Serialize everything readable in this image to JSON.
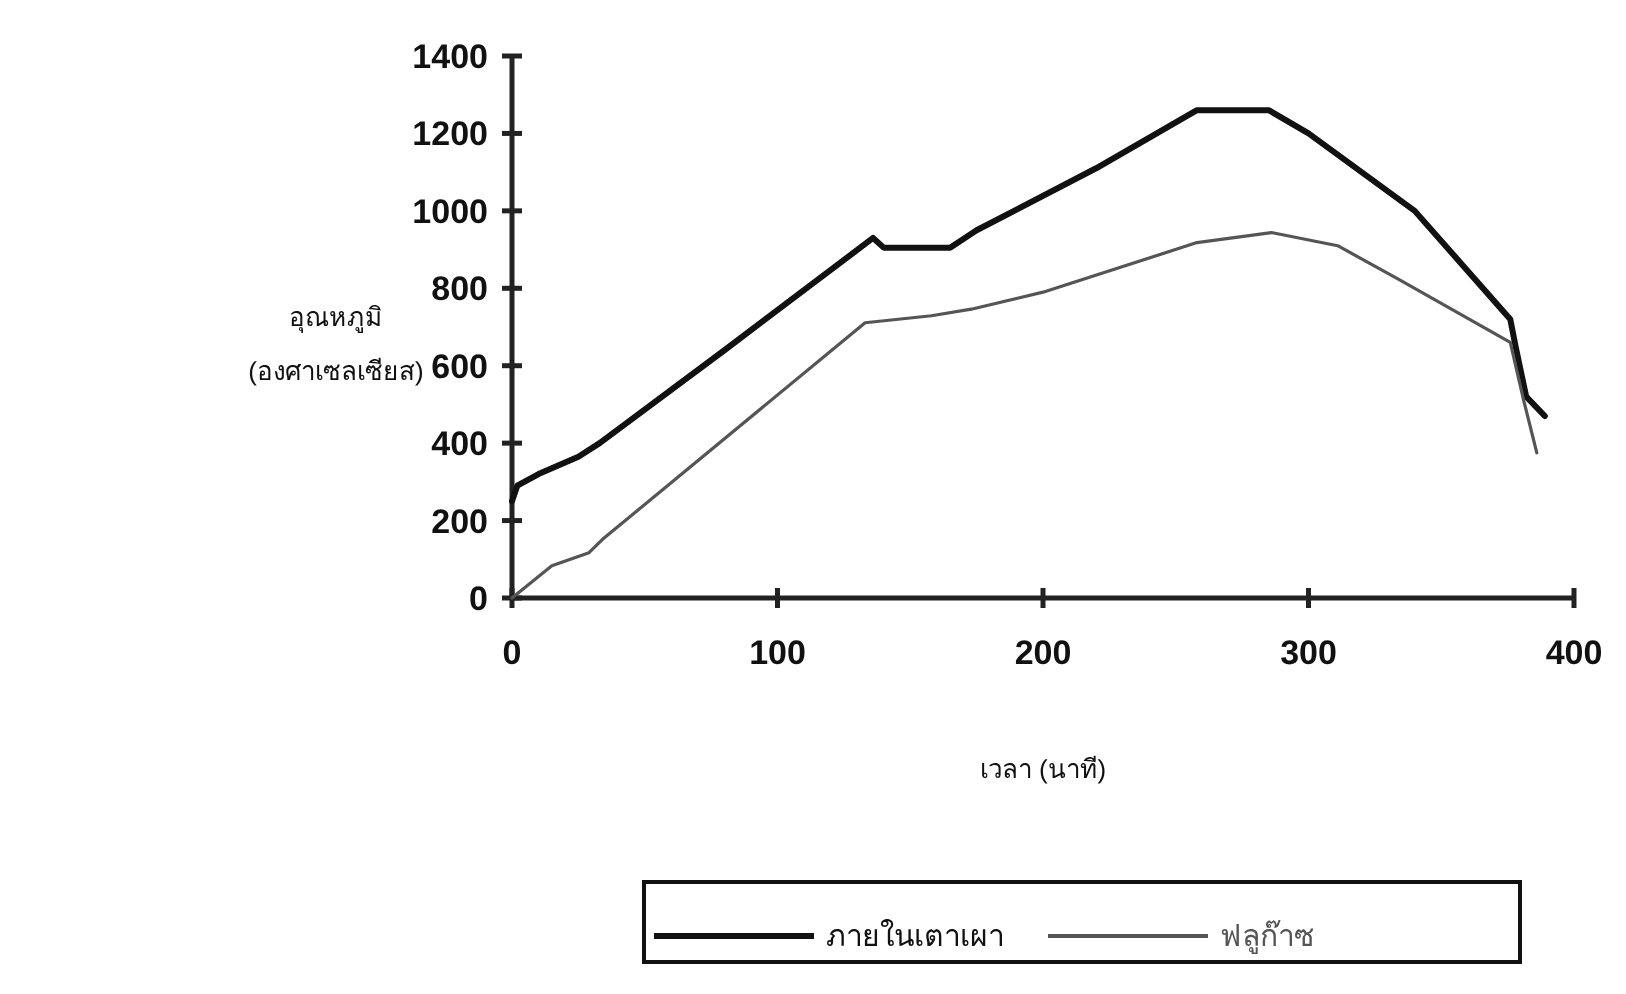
{
  "chart_data": {
    "type": "line",
    "xlabel": "เวลา (นาที)",
    "ylabel": "อุณหภูมิ (องศาเซลเซียส)",
    "xlim": [
      0,
      400
    ],
    "xticks": [
      0,
      100,
      200,
      300,
      400
    ],
    "ylim": [
      0,
      1400
    ],
    "yticks": [
      0,
      200,
      400,
      600,
      800,
      1000,
      1200,
      1400
    ],
    "grid": false,
    "legend": "bottom",
    "marker": "none",
    "line_style": "solid",
    "series": [
      {
        "name": "ภายในเตาเผา",
        "color": "#111111",
        "x": [
          0,
          2,
          10,
          25,
          33,
          80,
          136,
          140,
          165,
          175,
          220,
          258,
          285,
          300,
          340,
          376,
          378,
          382,
          389
        ],
        "values": [
          250,
          290,
          320,
          365,
          400,
          640,
          930,
          905,
          905,
          950,
          1110,
          1260,
          1260,
          1200,
          1000,
          720,
          650,
          520,
          470
        ]
      },
      {
        "name": "ฟลูก๊าซ",
        "color": "#555555",
        "x": [
          0,
          15,
          29,
          34,
          133,
          158,
          173,
          200,
          258,
          286,
          311,
          334,
          376,
          381,
          386
        ],
        "values": [
          0,
          83,
          117,
          151,
          711,
          729,
          746,
          790,
          918,
          944,
          910,
          823,
          660,
          512,
          375
        ]
      }
    ]
  }
}
